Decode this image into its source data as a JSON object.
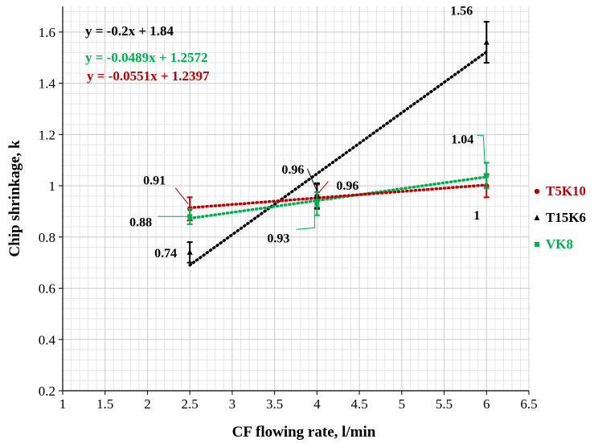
{
  "chart_data": {
    "type": "scatter",
    "xlabel": "CF flowing rate, l/min",
    "ylabel": "Chip shrinkage, k",
    "xlim": [
      1,
      6.5
    ],
    "ylim": [
      0.2,
      1.7
    ],
    "x_ticks": [
      "1",
      "1.5",
      "2",
      "2.5",
      "3",
      "3.5",
      "4",
      "4.5",
      "5",
      "5.5",
      "6",
      "6.5"
    ],
    "y_ticks": [
      "0.2",
      "0.4",
      "0.6",
      "0.8",
      "1",
      "1.2",
      "1.4",
      "1.6"
    ],
    "grid": true,
    "legend_position": "right",
    "series": [
      {
        "name": "T5K10",
        "color": "#c00000",
        "marker": "circle",
        "x": [
          2.5,
          4,
          6
        ],
        "y": [
          0.91,
          0.96,
          1.0
        ],
        "error": [
          0.045,
          0.045,
          0.045
        ],
        "data_labels": [
          "0.91",
          "0.96",
          "1"
        ],
        "trendline": {
          "slope": -0.0551,
          "intercept": 1.2397,
          "equation": "y = -0.0551x + 1.2397"
        }
      },
      {
        "name": "T15K6",
        "color": "#000000",
        "marker": "triangle",
        "x": [
          2.5,
          4,
          6
        ],
        "y": [
          0.74,
          0.96,
          1.56
        ],
        "error": [
          0.04,
          0.05,
          0.08
        ],
        "data_labels": [
          "0.74",
          "0.96",
          "1.56"
        ],
        "trendline": {
          "slope": -0.2,
          "intercept": 1.84,
          "equation": "y = -0.2x + 1.84"
        }
      },
      {
        "name": "VK8",
        "color": "#00b050",
        "marker": "square",
        "x": [
          2.5,
          4,
          6
        ],
        "y": [
          0.88,
          0.93,
          1.04
        ],
        "error": [
          0.03,
          0.045,
          0.05
        ],
        "data_labels": [
          "0.88",
          "0.93",
          "1.04"
        ],
        "trendline": {
          "slope": -0.0489,
          "intercept": 1.2572,
          "equation": "y = -0.0489x + 1.2572"
        }
      }
    ]
  }
}
